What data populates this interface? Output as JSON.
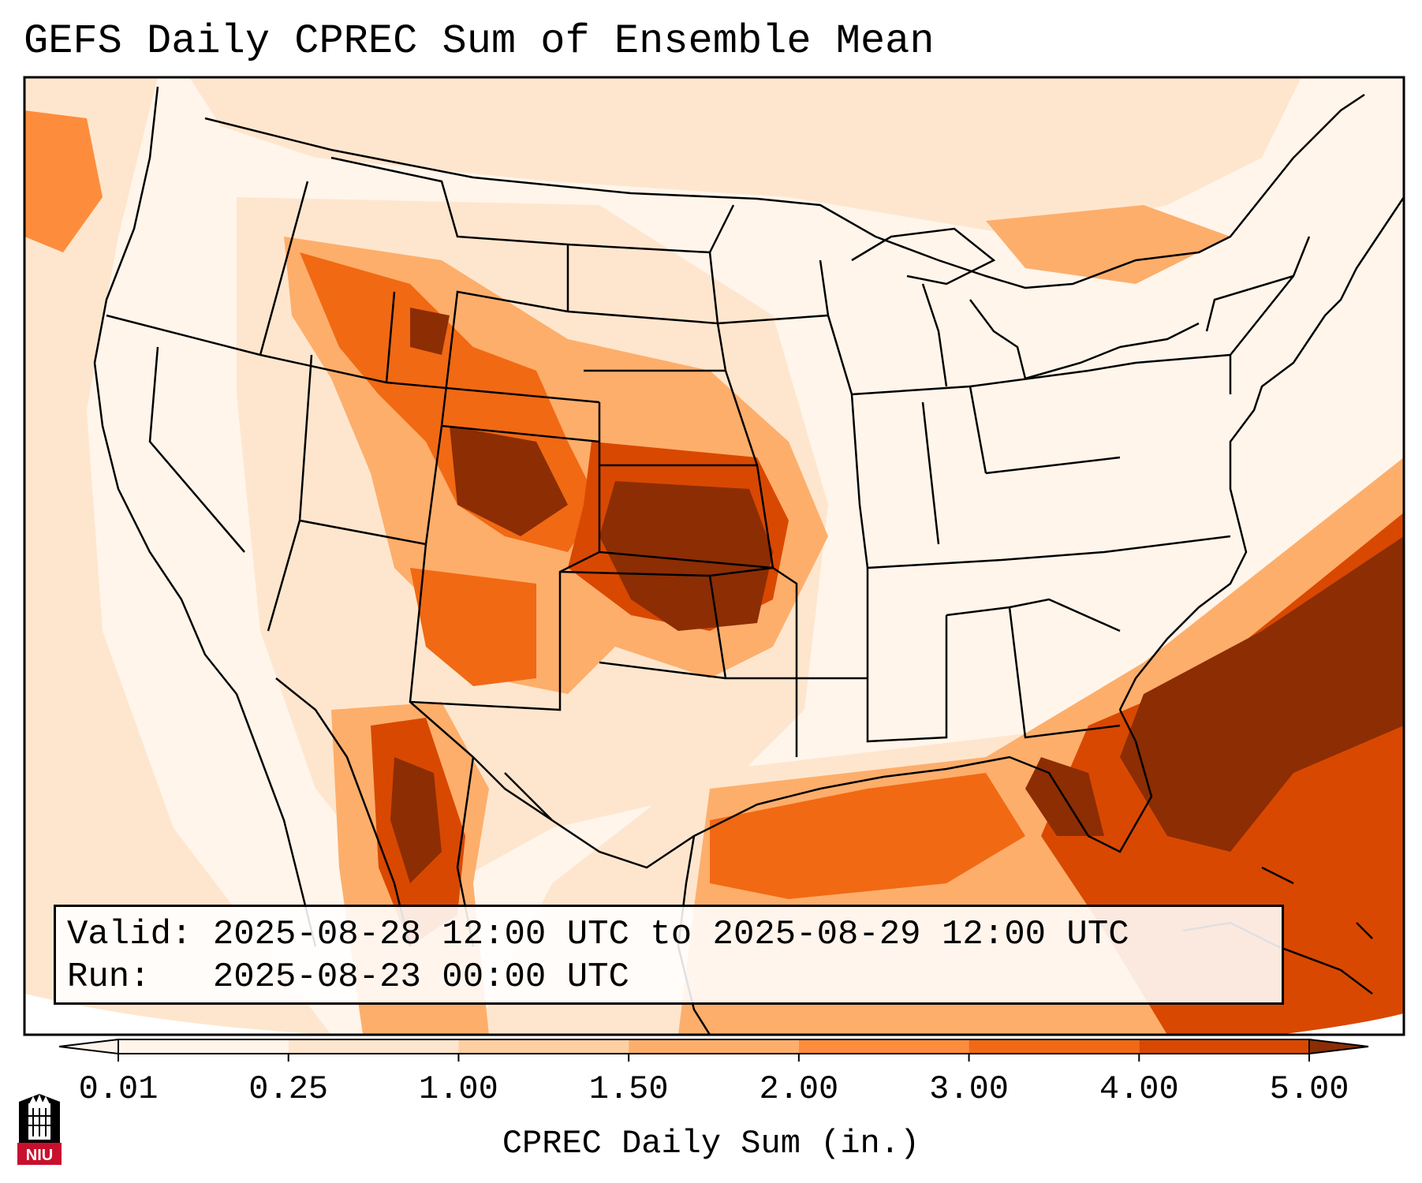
{
  "title": "GEFS Daily CPREC Sum of Ensemble Mean",
  "info": {
    "valid_label": "Valid:",
    "valid_value": "2025-08-28 12:00 UTC to 2025-08-29 12:00 UTC",
    "run_label": "Run:",
    "run_value": "2025-08-23 00:00 UTC"
  },
  "colorbar": {
    "label": "CPREC Daily Sum (in.)",
    "ticks": [
      "0.01",
      "0.25",
      "1.00",
      "1.50",
      "2.00",
      "3.00",
      "4.00",
      "5.00"
    ],
    "colors": [
      "#fff5eb",
      "#fee6ce",
      "#fdd0a2",
      "#fdae6b",
      "#fd8d3c",
      "#f16913",
      "#d94801",
      "#8c2d04"
    ],
    "under_color": "#fff5eb",
    "over_color": "#8c2d04"
  },
  "map": {
    "land_fill": "#ffffff",
    "outside_fill": "#ffffff",
    "boundary_color": "#000000"
  },
  "logo": {
    "text": "NIU",
    "colors": {
      "red": "#c8102e",
      "black": "#000000"
    }
  }
}
